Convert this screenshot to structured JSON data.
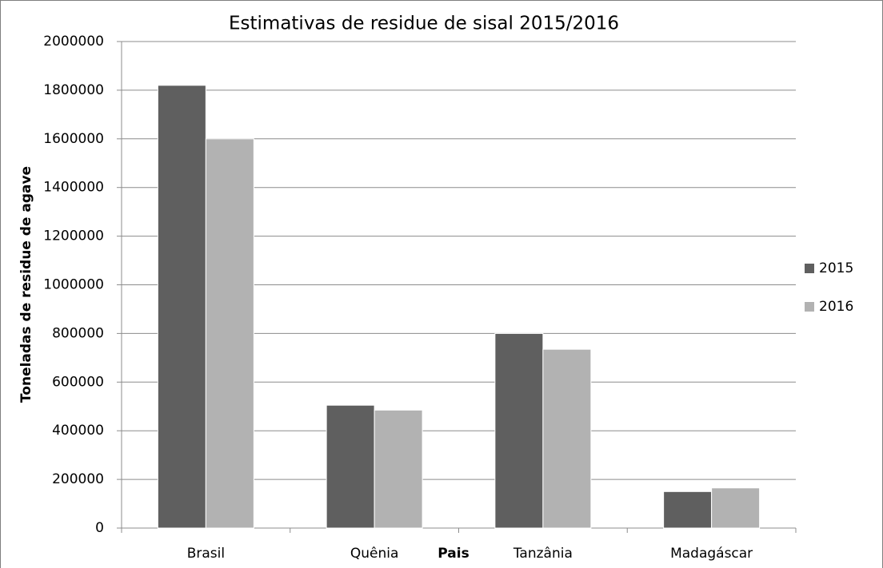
{
  "chart_data": {
    "type": "bar",
    "title": "Estimativas de residue de sisal 2015/2016",
    "x_label": "Pais",
    "y_label": "Toneladas de residue de agave",
    "categories": [
      "Brasil",
      "Quênia",
      "Tanzânia",
      "Madagáscar"
    ],
    "series": [
      {
        "name": "2015",
        "color": "#5f5f5f",
        "values": [
          1820000,
          505000,
          800000,
          150000
        ]
      },
      {
        "name": "2016",
        "color": "#b2b2b2",
        "values": [
          1600000,
          485000,
          735000,
          165000
        ]
      }
    ],
    "ylim": [
      0,
      2000000
    ],
    "yticks": [
      0,
      200000,
      400000,
      600000,
      800000,
      1000000,
      1200000,
      1400000,
      1600000,
      1800000,
      2000000
    ],
    "grid": true,
    "legend": "right"
  }
}
